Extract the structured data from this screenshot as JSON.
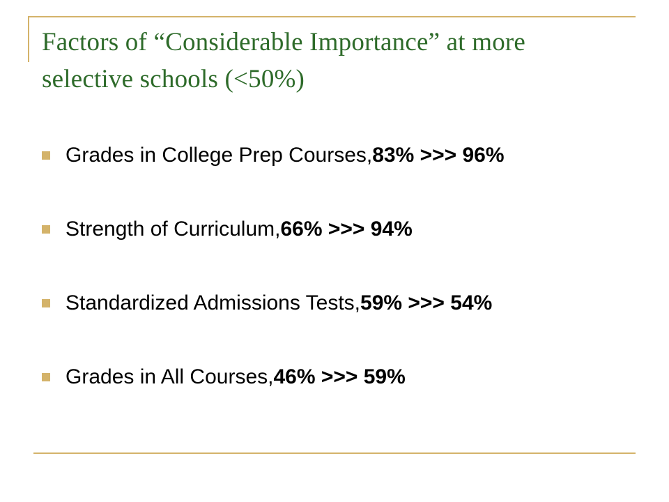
{
  "slide": {
    "title_line1": "Factors of “Considerable Importance” at more",
    "title_line2": "selective schools (<50%)",
    "accent_color": "#d4b36a",
    "title_color": "#2e6b2a",
    "bullets": [
      {
        "label": "Grades in College Prep Courses, ",
        "stat": "83% >>> 96%"
      },
      {
        "label": "Strength of Curriculum, ",
        "stat": "66% >>> 94%"
      },
      {
        "label": "Standardized Admissions Tests, ",
        "stat": "59% >>> 54%"
      },
      {
        "label": "Grades in All Courses, ",
        "stat": "46% >>> 59%"
      }
    ]
  }
}
